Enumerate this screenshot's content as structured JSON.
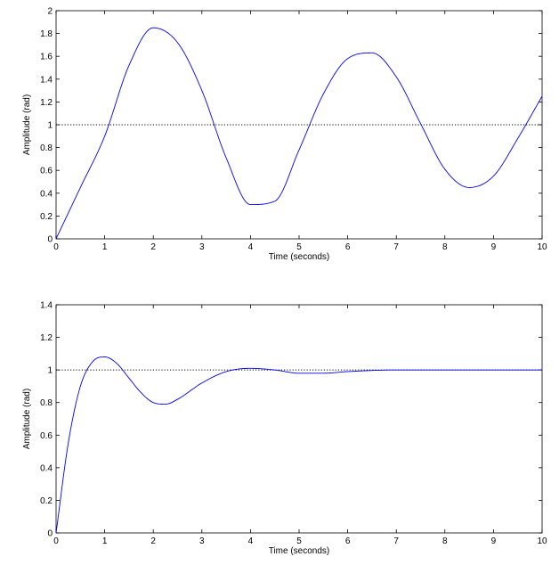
{
  "chart_data": [
    {
      "type": "line",
      "xlabel": "Time (seconds)",
      "ylabel": "Amplitude (rad)",
      "xlim": [
        0,
        10
      ],
      "ylim": [
        0,
        2
      ],
      "xticks": [
        "0",
        "1",
        "2",
        "3",
        "4",
        "5",
        "6",
        "7",
        "8",
        "9",
        "10"
      ],
      "yticks": [
        "0",
        "0.2",
        "0.4",
        "0.6",
        "0.8",
        "1",
        "1.2",
        "1.4",
        "1.6",
        "1.8",
        "2"
      ],
      "grid": false,
      "reference_line": {
        "y": 1,
        "style": "dotted",
        "color": "#000000"
      },
      "series": [
        {
          "color": "#0000ff",
          "x": [
            0,
            0.5,
            1,
            1.5,
            2,
            2.5,
            3,
            3.5,
            4,
            4.5,
            5,
            5.5,
            6,
            6.5,
            7,
            7.5,
            8,
            8.5,
            9,
            9.5,
            10
          ],
          "y": [
            0.0,
            0.45,
            0.9,
            1.52,
            1.85,
            1.72,
            1.3,
            0.71,
            0.3,
            0.33,
            0.78,
            1.27,
            1.58,
            1.63,
            1.42,
            1.01,
            0.61,
            0.45,
            0.55,
            0.88,
            1.25
          ]
        }
      ]
    },
    {
      "type": "line",
      "xlabel": "Time (seconds)",
      "ylabel": "Amplitude (rad)",
      "xlim": [
        0,
        10
      ],
      "ylim": [
        0,
        1.4
      ],
      "xticks": [
        "0",
        "1",
        "2",
        "3",
        "4",
        "5",
        "6",
        "7",
        "8",
        "9",
        "10"
      ],
      "yticks": [
        "0",
        "0.2",
        "0.4",
        "0.6",
        "0.8",
        "1",
        "1.2",
        "1.4"
      ],
      "grid": false,
      "reference_line": {
        "y": 1,
        "style": "dotted",
        "color": "#000000"
      },
      "series": [
        {
          "color": "#0000ff",
          "x": [
            0,
            0.25,
            0.5,
            0.75,
            1,
            1.25,
            1.5,
            1.75,
            2,
            2.25,
            2.5,
            3,
            3.5,
            4,
            4.5,
            5,
            5.5,
            6,
            7,
            8,
            9,
            10
          ],
          "y": [
            0.0,
            0.55,
            0.9,
            1.05,
            1.08,
            1.04,
            0.95,
            0.86,
            0.8,
            0.79,
            0.82,
            0.92,
            0.99,
            1.01,
            1.0,
            0.98,
            0.98,
            0.99,
            1.0,
            1.0,
            1.0,
            1.0
          ]
        }
      ]
    }
  ]
}
